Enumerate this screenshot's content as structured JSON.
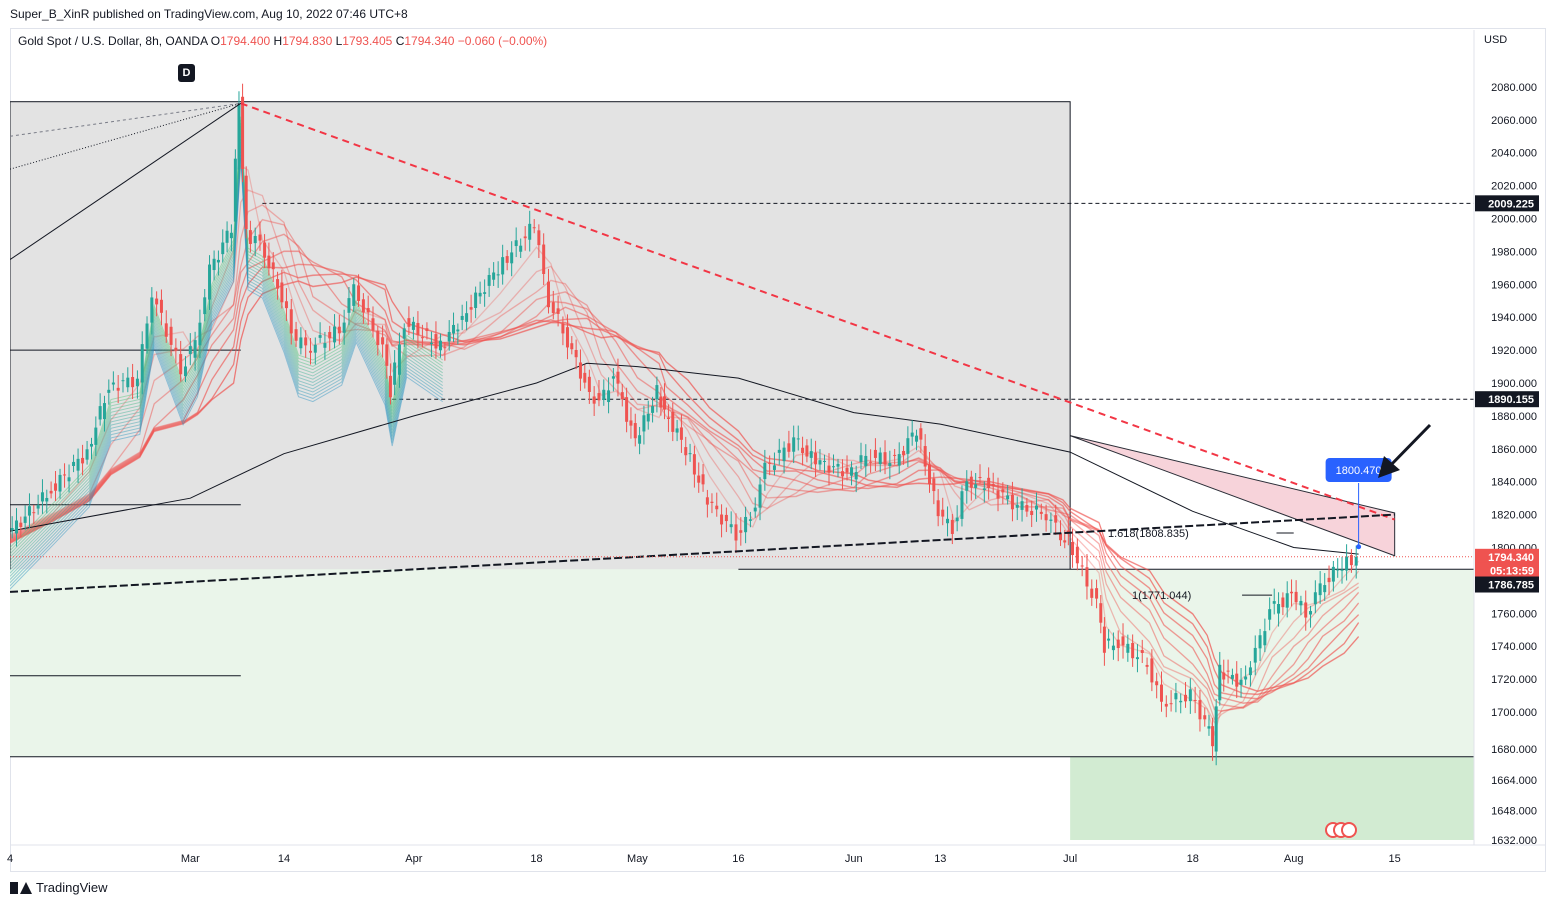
{
  "header": {
    "publisher_line": "Super_B_XinR published on TradingView.com, Aug 10, 2022 07:46 UTC+8"
  },
  "legend": {
    "symbol": "Gold Spot / U.S. Dollar, 8h, OANDA",
    "open_label": "O",
    "open": "1794.400",
    "high_label": "H",
    "high": "1794.830",
    "low_label": "L",
    "low": "1793.405",
    "close_label": "C",
    "close": "1794.340",
    "change": "−0.060 (−0.00%)"
  },
  "axis": {
    "currency": "USD"
  },
  "marker": {
    "d_label": "D"
  },
  "fib_labels": {
    "f1618": "1.618(1808.835)",
    "f1": "1(1771.044)"
  },
  "callout": {
    "price": "1800.470"
  },
  "price_tags": [
    {
      "text": "2009.225",
      "price": 2009.225,
      "style": "dark"
    },
    {
      "text": "1890.155",
      "price": 1890.155,
      "style": "dark"
    },
    {
      "text": "1794.340",
      "price": 1794.34,
      "style": "red"
    },
    {
      "text": "05:13:59",
      "price": 1786.0,
      "style": "red"
    },
    {
      "text": "1786.785",
      "price": 1777.5,
      "style": "dark"
    }
  ],
  "footer": {
    "brand": "TradingView"
  },
  "colors": {
    "up": "#26a69a",
    "down": "#ef5350",
    "dashed_trend": "#f23645",
    "dark_tag": "#131722",
    "callout": "#2962ff",
    "grey_zone": "#e3e3e3",
    "green_zone": "#eaf5ea",
    "green_zone_dark": "#d2ebd2",
    "pink_zone": "#f7cfd6"
  },
  "chart_data": {
    "type": "candlestick",
    "symbol": "Gold Spot / U.S. Dollar",
    "interval": "8h",
    "y_axis": {
      "min": 1632,
      "max": 2080,
      "ticks": [
        1632,
        1648,
        1664,
        1680,
        1700,
        1720,
        1740,
        1760,
        1780,
        1800,
        1820,
        1840,
        1860,
        1880,
        1900,
        1920,
        1940,
        1960,
        1980,
        2000,
        2020,
        2040,
        2060,
        2080
      ]
    },
    "y_tick_labels": [
      "1632.000",
      "1648.000",
      "1664.000",
      "1680.000",
      "1700.000",
      "1720.000",
      "1740.000",
      "1760.000",
      "1780.000",
      "1800.000",
      "1820.000",
      "1840.000",
      "1860.000",
      "1880.000",
      "1900.000",
      "1920.000",
      "1940.000",
      "1960.000",
      "1980.000",
      "2000.000",
      "2020.000",
      "2040.000",
      "2060.000",
      "2080.000"
    ],
    "x_axis": {
      "start": "2022-02-04",
      "end": "2022-08-26",
      "ticks": [
        {
          "label": "4",
          "date": "2022-02-04"
        },
        {
          "label": "Mar",
          "date": "2022-03-01"
        },
        {
          "label": "14",
          "date": "2022-03-14"
        },
        {
          "label": "Apr",
          "date": "2022-04-01"
        },
        {
          "label": "18",
          "date": "2022-04-18"
        },
        {
          "label": "May",
          "date": "2022-05-02"
        },
        {
          "label": "16",
          "date": "2022-05-16"
        },
        {
          "label": "Jun",
          "date": "2022-06-01"
        },
        {
          "label": "13",
          "date": "2022-06-13"
        },
        {
          "label": "Jul",
          "date": "2022-07-01"
        },
        {
          "label": "18",
          "date": "2022-07-18"
        },
        {
          "label": "Aug",
          "date": "2022-08-01"
        },
        {
          "label": "15",
          "date": "2022-08-15"
        }
      ]
    },
    "price_path": [
      [
        "2022-02-04",
        1808
      ],
      [
        "2022-02-10",
        1835
      ],
      [
        "2022-02-15",
        1858
      ],
      [
        "2022-02-18",
        1898
      ],
      [
        "2022-02-22",
        1902
      ],
      [
        "2022-02-24",
        1955
      ],
      [
        "2022-02-28",
        1908
      ],
      [
        "2022-03-02",
        1925
      ],
      [
        "2022-03-04",
        1968
      ],
      [
        "2022-03-07",
        1995
      ],
      [
        "2022-03-08",
        2070
      ],
      [
        "2022-03-09",
        1990
      ],
      [
        "2022-03-11",
        1985
      ],
      [
        "2022-03-14",
        1952
      ],
      [
        "2022-03-16",
        1925
      ],
      [
        "2022-03-18",
        1922
      ],
      [
        "2022-03-22",
        1932
      ],
      [
        "2022-03-24",
        1958
      ],
      [
        "2022-03-28",
        1920
      ],
      [
        "2022-03-29",
        1895
      ],
      [
        "2022-03-31",
        1937
      ],
      [
        "2022-04-05",
        1922
      ],
      [
        "2022-04-08",
        1940
      ],
      [
        "2022-04-13",
        1970
      ],
      [
        "2022-04-18",
        1996
      ],
      [
        "2022-04-20",
        1950
      ],
      [
        "2022-04-22",
        1932
      ],
      [
        "2022-04-25",
        1900
      ],
      [
        "2022-04-27",
        1886
      ],
      [
        "2022-04-29",
        1905
      ],
      [
        "2022-05-02",
        1864
      ],
      [
        "2022-05-05",
        1895
      ],
      [
        "2022-05-06",
        1883
      ],
      [
        "2022-05-09",
        1860
      ],
      [
        "2022-05-12",
        1828
      ],
      [
        "2022-05-16",
        1808
      ],
      [
        "2022-05-18",
        1818
      ],
      [
        "2022-05-20",
        1848
      ],
      [
        "2022-05-24",
        1865
      ],
      [
        "2022-05-27",
        1852
      ],
      [
        "2022-06-01",
        1845
      ],
      [
        "2022-06-03",
        1856
      ],
      [
        "2022-06-07",
        1852
      ],
      [
        "2022-06-10",
        1872
      ],
      [
        "2022-06-13",
        1820
      ],
      [
        "2022-06-15",
        1812
      ],
      [
        "2022-06-17",
        1840
      ],
      [
        "2022-06-20",
        1838
      ],
      [
        "2022-06-24",
        1825
      ],
      [
        "2022-06-28",
        1820
      ],
      [
        "2022-06-30",
        1808
      ],
      [
        "2022-07-01",
        1805
      ],
      [
        "2022-07-05",
        1765
      ],
      [
        "2022-07-06",
        1740
      ],
      [
        "2022-07-08",
        1742
      ],
      [
        "2022-07-12",
        1730
      ],
      [
        "2022-07-14",
        1705
      ],
      [
        "2022-07-18",
        1710
      ],
      [
        "2022-07-20",
        1695
      ],
      [
        "2022-07-21",
        1682
      ],
      [
        "2022-07-22",
        1725
      ],
      [
        "2022-07-25",
        1718
      ],
      [
        "2022-07-27",
        1735
      ],
      [
        "2022-07-29",
        1762
      ],
      [
        "2022-08-01",
        1771
      ],
      [
        "2022-08-03",
        1760
      ],
      [
        "2022-08-05",
        1776
      ],
      [
        "2022-08-08",
        1790
      ],
      [
        "2022-08-10",
        1794.34
      ]
    ],
    "moving_average_200": [
      [
        "2022-02-04",
        1810
      ],
      [
        "2022-03-01",
        1830
      ],
      [
        "2022-03-14",
        1857
      ],
      [
        "2022-04-01",
        1880
      ],
      [
        "2022-04-18",
        1900
      ],
      [
        "2022-04-25",
        1912
      ],
      [
        "2022-05-02",
        1910
      ],
      [
        "2022-05-16",
        1903
      ],
      [
        "2022-06-01",
        1882
      ],
      [
        "2022-06-13",
        1875
      ],
      [
        "2022-07-01",
        1858
      ],
      [
        "2022-07-18",
        1822
      ],
      [
        "2022-08-01",
        1800
      ],
      [
        "2022-08-10",
        1796
      ]
    ],
    "horizontal_levels": [
      {
        "price": 2009.225,
        "from": "2022-03-11",
        "to": "2022-08-26",
        "style": "dashed"
      },
      {
        "price": 1890.155,
        "from": "2022-03-29",
        "to": "2022-08-26",
        "style": "dashed"
      },
      {
        "price": 1786.785,
        "from": "2022-05-16",
        "to": "2022-08-26",
        "style": "dashed-solid"
      },
      {
        "price": 1920,
        "from": "2022-02-04",
        "to": "2022-03-08",
        "style": "solid"
      },
      {
        "price": 1826,
        "from": "2022-02-04",
        "to": "2022-03-08",
        "style": "solid"
      },
      {
        "price": 1722,
        "from": "2022-02-04",
        "to": "2022-03-08",
        "style": "solid"
      },
      {
        "price": 1676,
        "from": "2022-02-04",
        "to": "2022-08-26",
        "style": "solid"
      }
    ],
    "trendlines": [
      {
        "from": [
          "2022-03-08",
          2070
        ],
        "to": [
          "2022-08-15",
          1817
        ],
        "style": "red-dashed"
      },
      {
        "from": [
          "2022-02-04",
          1773
        ],
        "to": [
          "2022-08-15",
          1820
        ],
        "style": "black-dashed"
      },
      {
        "from": [
          "2022-02-04",
          1975
        ],
        "to": [
          "2022-03-08",
          2070
        ],
        "style": "black"
      }
    ],
    "zones": [
      {
        "from": "2022-02-04",
        "to": "2022-07-01",
        "top": 2071,
        "bottom": 1773,
        "kind": "grey"
      },
      {
        "from": "2022-02-04",
        "to": "2022-08-26",
        "top": 1786.785,
        "bottom": 1676,
        "kind": "green"
      },
      {
        "from": "2022-07-01",
        "to": "2022-08-26",
        "top": 1676,
        "bottom": 1632,
        "kind": "green-dark"
      }
    ],
    "fibonacci": [
      {
        "level": "1.618",
        "price": 1808.835
      },
      {
        "level": "1",
        "price": 1771.044
      }
    ],
    "annotations": [
      "D",
      "1800.470"
    ]
  }
}
